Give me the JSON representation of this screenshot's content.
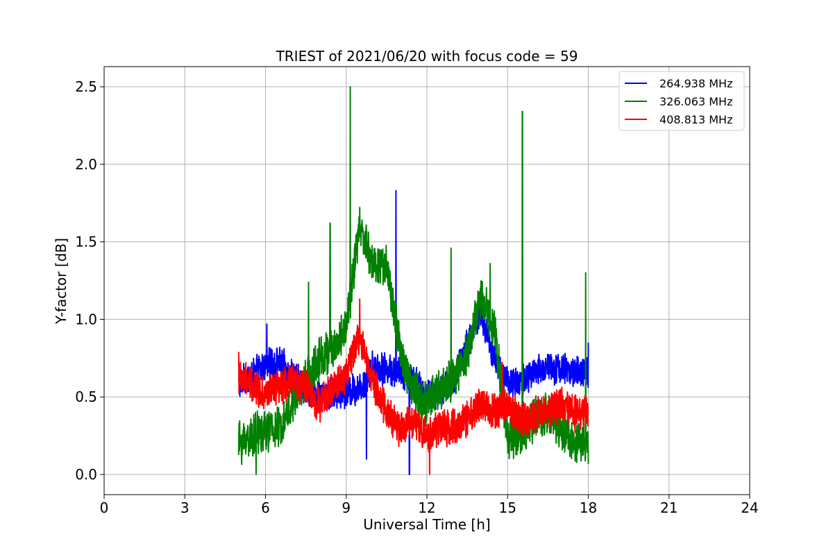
{
  "chart_data": {
    "type": "line",
    "title": "TRIEST of 2021/06/20 with focus code = 59",
    "xlabel": "Universal Time [h]",
    "ylabel": "Y-factor [dB]",
    "xlim": [
      0,
      24
    ],
    "ylim": [
      -0.13,
      2.63
    ],
    "xticks": [
      0,
      3,
      6,
      9,
      12,
      15,
      18,
      21,
      24
    ],
    "yticks": [
      0.0,
      0.5,
      1.0,
      1.5,
      2.0,
      2.5
    ],
    "xtick_labels": [
      "0",
      "3",
      "6",
      "9",
      "12",
      "15",
      "18",
      "21",
      "24"
    ],
    "ytick_labels": [
      "0.0",
      "0.5",
      "1.0",
      "1.5",
      "2.0",
      "2.5"
    ],
    "grid": true,
    "legend_position": "top-right",
    "series": [
      {
        "name": "264.938 MHz",
        "color": "#0000ff",
        "x": [
          5.0,
          5.5,
          6.0,
          6.5,
          7.0,
          7.5,
          8.0,
          8.5,
          9.0,
          9.5,
          10.0,
          10.5,
          11.0,
          11.5,
          12.0,
          12.5,
          13.0,
          13.5,
          14.0,
          14.5,
          15.0,
          15.5,
          16.0,
          16.5,
          17.0,
          17.5,
          18.0
        ],
        "values": [
          0.58,
          0.64,
          0.7,
          0.72,
          0.65,
          0.55,
          0.5,
          0.52,
          0.54,
          0.55,
          0.7,
          0.68,
          0.66,
          0.62,
          0.5,
          0.55,
          0.6,
          0.85,
          1.05,
          0.75,
          0.6,
          0.6,
          0.65,
          0.7,
          0.68,
          0.66,
          0.65
        ],
        "spikes": [
          [
            6.05,
            0.97
          ],
          [
            10.85,
            1.83
          ],
          [
            9.75,
            0.1
          ],
          [
            11.35,
            0.0
          ],
          [
            18.0,
            0.85
          ]
        ]
      },
      {
        "name": "326.063 MHz",
        "color": "#008000",
        "x": [
          5.0,
          5.5,
          6.0,
          6.5,
          7.0,
          7.5,
          8.0,
          8.5,
          9.0,
          9.5,
          10.0,
          10.5,
          11.0,
          11.5,
          12.0,
          12.5,
          13.0,
          13.5,
          14.0,
          14.5,
          15.0,
          15.5,
          16.0,
          16.5,
          17.0,
          17.5,
          18.0
        ],
        "values": [
          0.2,
          0.25,
          0.28,
          0.3,
          0.45,
          0.6,
          0.75,
          0.8,
          0.95,
          1.6,
          1.35,
          1.35,
          0.8,
          0.55,
          0.45,
          0.55,
          0.6,
          0.8,
          1.15,
          0.95,
          0.25,
          0.25,
          0.35,
          0.4,
          0.3,
          0.2,
          0.2
        ],
        "spikes": [
          [
            9.15,
            2.5
          ],
          [
            15.55,
            2.34
          ],
          [
            8.4,
            1.62
          ],
          [
            12.9,
            1.46
          ],
          [
            14.35,
            1.36
          ],
          [
            17.9,
            1.3
          ],
          [
            7.6,
            1.24
          ],
          [
            5.65,
            0.0
          ]
        ]
      },
      {
        "name": "408.813 MHz",
        "color": "#ff0000",
        "x": [
          5.0,
          5.5,
          6.0,
          6.5,
          7.0,
          7.5,
          8.0,
          8.5,
          9.0,
          9.5,
          10.0,
          10.5,
          11.0,
          11.5,
          12.0,
          12.5,
          13.0,
          13.5,
          14.0,
          14.5,
          15.0,
          15.5,
          16.0,
          16.5,
          17.0,
          17.5,
          18.0
        ],
        "values": [
          0.62,
          0.58,
          0.52,
          0.55,
          0.62,
          0.55,
          0.45,
          0.55,
          0.65,
          0.9,
          0.6,
          0.4,
          0.3,
          0.35,
          0.25,
          0.3,
          0.3,
          0.35,
          0.45,
          0.4,
          0.45,
          0.35,
          0.38,
          0.42,
          0.45,
          0.4,
          0.4
        ],
        "spikes": [
          [
            9.5,
            1.13
          ],
          [
            5.0,
            0.79
          ],
          [
            14.8,
            0.72
          ],
          [
            12.1,
            0.0
          ]
        ]
      }
    ]
  }
}
